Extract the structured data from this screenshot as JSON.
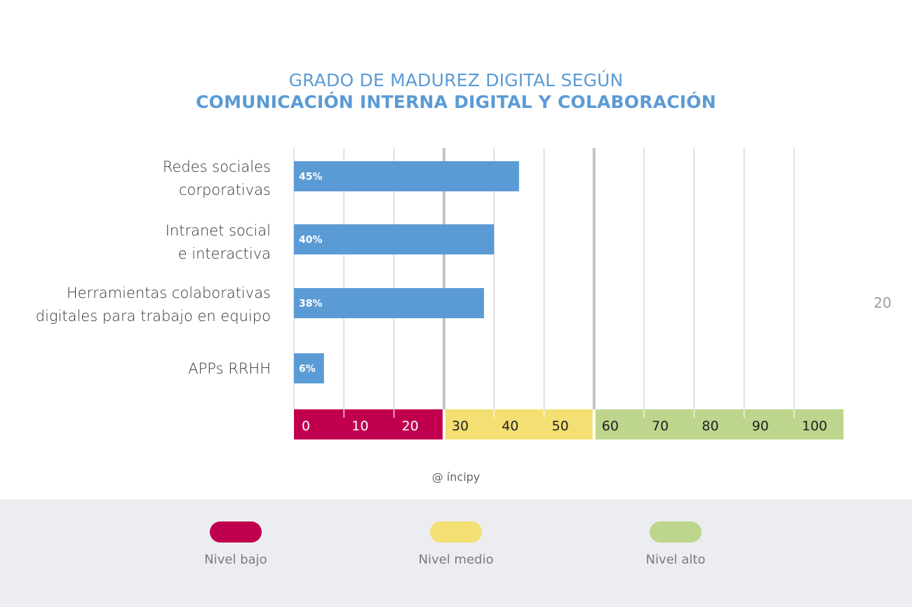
{
  "title_line1": "GRADO DE MADUREZ DIGITAL SEGÚN",
  "title_line2": "COMUNICACIÓN INTERNA DIGITAL Y COLABORACIÓN",
  "page_number": "20",
  "source": "@ íncipy",
  "categories": [
    {
      "line1": "Redes sociales",
      "line2": "corporativas"
    },
    {
      "line1": "Intranet social",
      "line2": "e interactiva"
    },
    {
      "line1": "Herramientas colaborativas",
      "line2": "digitales para trabajo en equipo"
    },
    {
      "line1": "APPs RRHH",
      "line2": ""
    }
  ],
  "legend": [
    {
      "label": "Nivel bajo",
      "color": "#c0004f"
    },
    {
      "label": "Nivel medio",
      "color": "#f3df72"
    },
    {
      "label": "Nivel alto",
      "color": "#bdd58c"
    }
  ],
  "colors": {
    "bar": "#5b9bd5",
    "title": "#5b9bd5",
    "grid": "#d8d8de",
    "grid_major": "#c2c2cc",
    "bar_label": "#ffffff"
  },
  "chart_data": {
    "type": "bar",
    "orientation": "horizontal",
    "categories": [
      "Redes sociales corporativas",
      "Intranet social e interactiva",
      "Herramientas colaborativas digitales para trabajo en equipo",
      "APPs RRHH"
    ],
    "values": [
      45,
      40,
      38,
      6
    ],
    "value_labels": [
      "45%",
      "40%",
      "38%",
      "6%"
    ],
    "xlim": [
      0,
      110
    ],
    "x_ticks": [
      0,
      10,
      20,
      30,
      40,
      50,
      60,
      70,
      80,
      90,
      100
    ],
    "x_tick_labels": [
      "0",
      "10",
      "20",
      "30",
      "40",
      "50",
      "60",
      "70",
      "80",
      "90",
      "100"
    ],
    "zones": [
      {
        "name": "Nivel bajo",
        "from": 0,
        "to": 30,
        "color": "#c0004f",
        "text_color": "#ffffff"
      },
      {
        "name": "Nivel medio",
        "from": 30,
        "to": 60,
        "color": "#f3df72",
        "text_color": "#222222"
      },
      {
        "name": "Nivel alto",
        "from": 60,
        "to": 110,
        "color": "#bdd58c",
        "text_color": "#222222"
      }
    ],
    "major_gridlines": [
      30,
      60
    ],
    "grid": true
  }
}
